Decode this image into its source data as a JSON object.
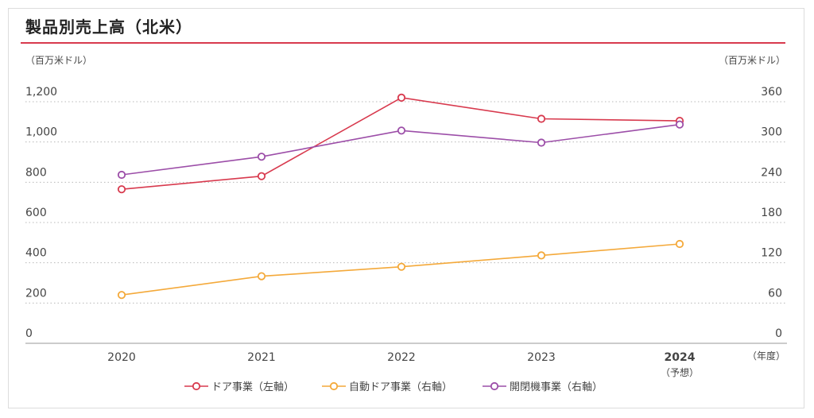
{
  "title": "製品別売上高（北米）",
  "chart_data": {
    "type": "line",
    "title": "製品別売上高（北米）",
    "y_left_unit": "（百万米ドル）",
    "y_right_unit": "（百万米ドル）",
    "x_unit": "（年度）",
    "x_categories": [
      "2020",
      "2021",
      "2022",
      "2023",
      "2024"
    ],
    "x_sublabels": [
      "",
      "",
      "",
      "",
      "（予想）"
    ],
    "x_bold": [
      false,
      false,
      false,
      false,
      true
    ],
    "y_left_ticks": [
      "0",
      "200",
      "400",
      "600",
      "800",
      "1,000",
      "1,200"
    ],
    "y_left_range": [
      0,
      1200
    ],
    "y_right_ticks": [
      "0",
      "60",
      "120",
      "180",
      "240",
      "300",
      "360"
    ],
    "y_right_range": [
      0,
      360
    ],
    "grid": "horizontal-dotted",
    "legend_position": "bottom",
    "series": [
      {
        "name": "ドア事業（左軸）",
        "axis": "left",
        "color": "#d83a4e",
        "values": [
          765,
          830,
          1220,
          1115,
          1105
        ]
      },
      {
        "name": "自動ドア事業（右軸）",
        "axis": "right",
        "color": "#f4a93a",
        "values": [
          72,
          100,
          114,
          131,
          148
        ]
      },
      {
        "name": "開閉機事業（右軸）",
        "axis": "right",
        "color": "#9c4ea8",
        "values": [
          251,
          278,
          317,
          299,
          326
        ]
      }
    ]
  }
}
